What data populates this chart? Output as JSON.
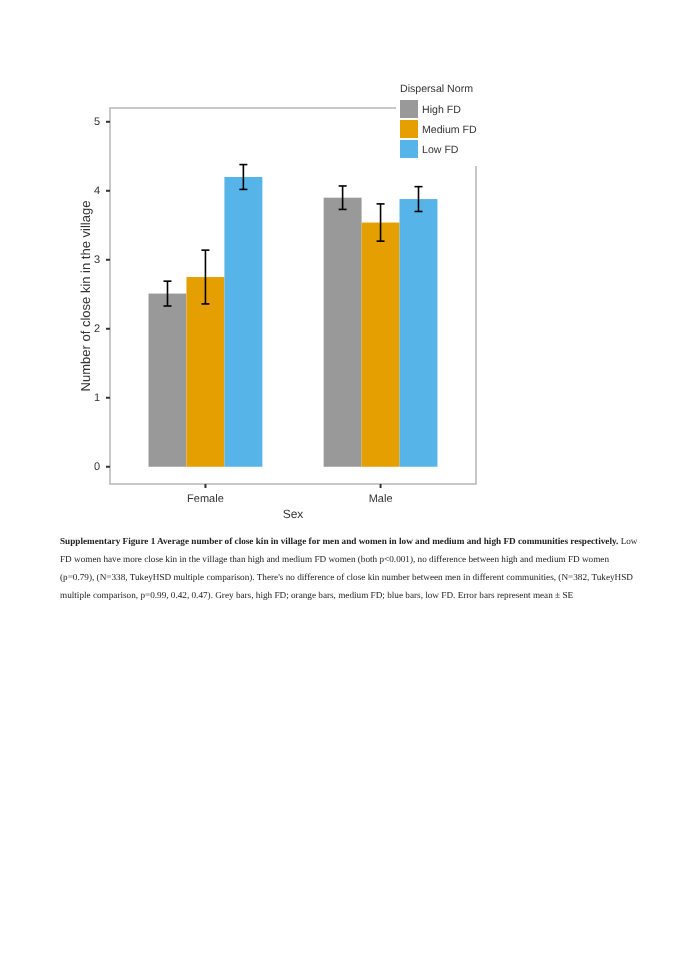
{
  "chart_data": {
    "type": "bar",
    "xlabel": "Sex",
    "ylabel": "Number of close kin in the village",
    "legend_title": "Dispersal Norm",
    "categories": [
      "Female",
      "Male"
    ],
    "series": [
      {
        "name": "High FD",
        "color": "#999999",
        "values": [
          2.51,
          3.9
        ],
        "errors": [
          0.18,
          0.17
        ]
      },
      {
        "name": "Medium FD",
        "color": "#e69f00",
        "values": [
          2.75,
          3.54
        ],
        "errors": [
          0.39,
          0.27
        ]
      },
      {
        "name": "Low FD",
        "color": "#56b4e9",
        "values": [
          4.2,
          3.88
        ],
        "errors": [
          0.18,
          0.18
        ]
      }
    ],
    "ylim": [
      -0.25,
      5.2
    ],
    "yticks": [
      0,
      1,
      2,
      3,
      4,
      5
    ],
    "grid": false,
    "legend": "top right",
    "annotations": [
      "Supplementary Figure 1 Average number of close kin in village for men and women in low and medium and high FD communities respectively.",
      "Low FD women have more close kin in the village than high and medium FD women (both p<0.001), no difference between high and medium FD women (p=0.79), (N=338, TukeyHSD multiple comparison). There's no difference of close kin number between men in different communities, (N=382, TukeyHSD multiple comparison, p=0.99, 0.42, 0.47). Grey bars, high FD; orange bars, medium FD; blue bars, low FD.   Error bars represent mean ± SE"
    ]
  }
}
